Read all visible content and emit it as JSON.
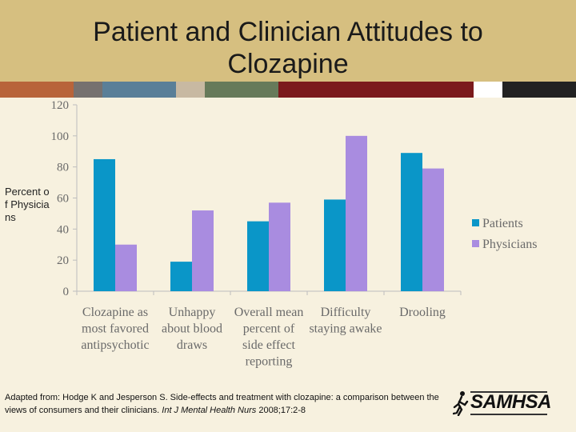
{
  "slide": {
    "title": "Patient and Clinician Attitudes to Clozapine",
    "ylabel": "Percent of Physicians",
    "citation_plain": "Adapted from: Hodge K and Jesperson S. Side-effects and treatment with clozapine: a comparison between the views of consumers and their clinicians.",
    "citation_journal": "Int J Mental Health Nurs",
    "citation_tail": "2008;17:2-8",
    "logo_text": "SAMHSA",
    "stripe_colors": [
      "#b8643a",
      "#76716f",
      "#5a7f98",
      "#c8b9a2",
      "#677a5a",
      "#7b1a1c",
      "#ffffff",
      "#222222"
    ]
  },
  "chart_data": {
    "type": "bar",
    "categories": [
      "Clozapine as most favored antipsychotic",
      "Unhappy about blood draws",
      "Overall mean percent of side effect reporting",
      "Difficulty staying awake",
      "Drooling"
    ],
    "category_lines": [
      [
        "Clozapine as",
        "most favored",
        "antipsychotic"
      ],
      [
        "Unhappy",
        "about blood",
        "draws"
      ],
      [
        "Overall mean",
        "percent of",
        "side effect",
        "reporting"
      ],
      [
        "Difficulty",
        "staying awake"
      ],
      [
        "Drooling"
      ]
    ],
    "series": [
      {
        "name": "Patients",
        "values": [
          85,
          19,
          45,
          59,
          89
        ],
        "color": "#0a96c8"
      },
      {
        "name": "Physicians",
        "values": [
          30,
          52,
          57,
          100,
          79
        ],
        "color": "#a98ce0"
      }
    ],
    "ylim": [
      0,
      120
    ],
    "yticks": [
      0,
      20,
      40,
      60,
      80,
      100,
      120
    ],
    "ylabel": "Percent of Physicians",
    "legend": "right",
    "grid": false
  }
}
